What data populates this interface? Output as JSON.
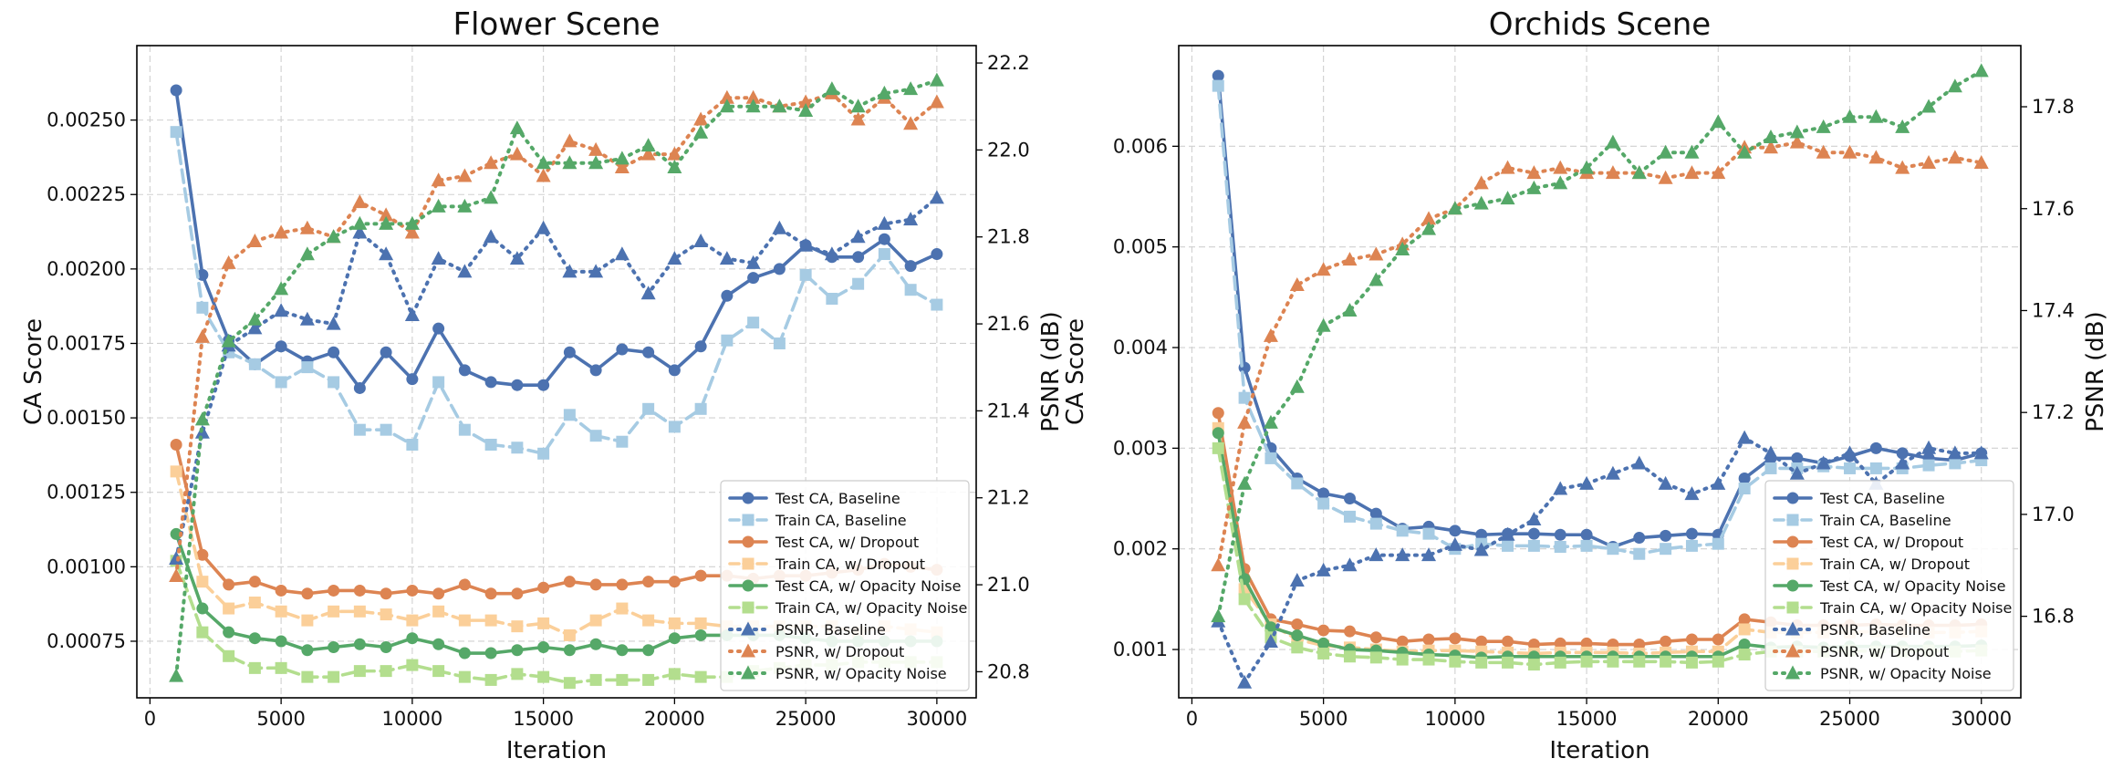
{
  "colors": {
    "baseline": "#4c72b0",
    "baseline_light": "#a6cbe3",
    "dropout": "#dd8452",
    "dropout_light": "#fbcf99",
    "noise": "#55a868",
    "noise_light": "#b3de8e"
  },
  "chart_data": [
    {
      "type": "line",
      "title": "Flower Scene",
      "xlabel": "Iteration",
      "ylabel": "CA Score",
      "y2label": "PSNR (dB)",
      "xlim": [
        -500,
        31500
      ],
      "ylim": [
        0.00056,
        0.00275
      ],
      "y2lim": [
        20.74,
        22.24
      ],
      "xticks": [
        0,
        5000,
        10000,
        15000,
        20000,
        25000,
        30000
      ],
      "yticks": [
        0.00075,
        0.001,
        0.00125,
        0.0015,
        0.00175,
        0.002,
        0.00225,
        0.0025
      ],
      "ytick_labels": [
        "0.00075",
        "0.00100",
        "0.00125",
        "0.00150",
        "0.00175",
        "0.00200",
        "0.00225",
        "0.00250"
      ],
      "y2ticks": [
        20.8,
        21.0,
        21.2,
        21.4,
        21.6,
        21.8,
        22.0,
        22.2
      ],
      "y2tick_labels": [
        "20.8",
        "21.0",
        "21.2",
        "21.4",
        "21.6",
        "21.8",
        "22.0",
        "22.2"
      ],
      "grid": true,
      "legend_position": "lower-right",
      "x": [
        1000,
        2000,
        3000,
        4000,
        5000,
        6000,
        7000,
        8000,
        9000,
        10000,
        11000,
        12000,
        13000,
        14000,
        15000,
        16000,
        17000,
        18000,
        19000,
        20000,
        21000,
        22000,
        23000,
        24000,
        25000,
        26000,
        27000,
        28000,
        29000,
        30000
      ],
      "series": [
        {
          "name": "Test CA, Baseline",
          "axis": "left",
          "values": [
            0.0026,
            0.00198,
            0.00176,
            0.00168,
            0.00174,
            0.00169,
            0.00172,
            0.0016,
            0.00172,
            0.00163,
            0.0018,
            0.00166,
            0.00162,
            0.00161,
            0.00161,
            0.00172,
            0.00166,
            0.00173,
            0.00172,
            0.00166,
            0.00174,
            0.00191,
            0.00197,
            0.002,
            0.00208,
            0.00204,
            0.00204,
            0.0021,
            0.00201,
            0.00205
          ]
        },
        {
          "name": "Train CA, Baseline",
          "axis": "left",
          "values": [
            0.00246,
            0.00187,
            0.00172,
            0.00168,
            0.00162,
            0.00167,
            0.00162,
            0.00146,
            0.00146,
            0.00141,
            0.00162,
            0.00146,
            0.00141,
            0.0014,
            0.00138,
            0.00151,
            0.00144,
            0.00142,
            0.00153,
            0.00147,
            0.00153,
            0.00176,
            0.00182,
            0.00175,
            0.00198,
            0.0019,
            0.00195,
            0.00205,
            0.00193,
            0.00188
          ]
        },
        {
          "name": "Test CA, w/ Dropout",
          "axis": "left",
          "values": [
            0.00141,
            0.00104,
            0.00094,
            0.00095,
            0.00092,
            0.00091,
            0.00092,
            0.00092,
            0.00091,
            0.00092,
            0.00091,
            0.00094,
            0.00091,
            0.00091,
            0.00093,
            0.00095,
            0.00094,
            0.00094,
            0.00095,
            0.00095,
            0.00097,
            0.00097,
            0.00096,
            0.00097,
            0.00097,
            0.00098,
            0.00099,
            0.00101,
            0.001,
            0.00099
          ]
        },
        {
          "name": "Train CA, w/ Dropout",
          "axis": "left",
          "values": [
            0.00132,
            0.00095,
            0.00086,
            0.00088,
            0.00085,
            0.00082,
            0.00085,
            0.00085,
            0.00084,
            0.00082,
            0.00085,
            0.00082,
            0.00082,
            0.0008,
            0.00081,
            0.00077,
            0.00082,
            0.00086,
            0.00082,
            0.00081,
            0.00081,
            0.0008,
            0.0008,
            0.0008,
            0.0008,
            0.0008,
            0.00078,
            0.0008,
            0.00079,
            0.00078
          ]
        },
        {
          "name": "Test CA, w/ Opacity Noise",
          "axis": "left",
          "values": [
            0.00111,
            0.00086,
            0.00078,
            0.00076,
            0.00075,
            0.00072,
            0.00073,
            0.00074,
            0.00073,
            0.00076,
            0.00074,
            0.00071,
            0.00071,
            0.00072,
            0.00073,
            0.00072,
            0.00074,
            0.00072,
            0.00072,
            0.00076,
            0.00077,
            0.00077,
            0.00077,
            0.00077,
            0.00076,
            0.00075,
            0.00075,
            0.00075,
            0.00075,
            0.00075
          ]
        },
        {
          "name": "Train CA, w/ Opacity Noise",
          "axis": "left",
          "values": [
            0.00102,
            0.00078,
            0.0007,
            0.00066,
            0.00066,
            0.00063,
            0.00063,
            0.00065,
            0.00065,
            0.00067,
            0.00065,
            0.00063,
            0.00062,
            0.00064,
            0.00063,
            0.00061,
            0.00062,
            0.00062,
            0.00062,
            0.00064,
            0.00063,
            0.00063,
            0.00065,
            0.00066,
            0.00067,
            0.00067,
            0.00068,
            0.00068,
            0.00068,
            0.00068
          ]
        },
        {
          "name": "PSNR, Baseline",
          "axis": "right",
          "values": [
            21.06,
            21.35,
            21.55,
            21.59,
            21.63,
            21.61,
            21.6,
            21.81,
            21.76,
            21.62,
            21.75,
            21.72,
            21.8,
            21.75,
            21.82,
            21.72,
            21.72,
            21.76,
            21.67,
            21.75,
            21.79,
            21.75,
            21.74,
            21.82,
            21.78,
            21.76,
            21.8,
            21.83,
            21.84,
            21.89
          ]
        },
        {
          "name": "PSNR, w/ Dropout",
          "axis": "right",
          "values": [
            21.02,
            21.57,
            21.74,
            21.79,
            21.81,
            21.82,
            21.8,
            21.88,
            21.85,
            21.81,
            21.93,
            21.94,
            21.97,
            21.99,
            21.94,
            22.02,
            22.0,
            21.96,
            21.99,
            21.99,
            22.07,
            22.12,
            22.12,
            22.1,
            22.11,
            22.13,
            22.07,
            22.12,
            22.06,
            22.11
          ]
        },
        {
          "name": "PSNR, w/ Opacity Noise",
          "axis": "right",
          "values": [
            20.79,
            21.38,
            21.56,
            21.61,
            21.68,
            21.76,
            21.8,
            21.83,
            21.83,
            21.83,
            21.87,
            21.87,
            21.89,
            22.05,
            21.97,
            21.97,
            21.97,
            21.98,
            22.01,
            21.96,
            22.04,
            22.1,
            22.1,
            22.1,
            22.09,
            22.14,
            22.1,
            22.13,
            22.14,
            22.16
          ]
        }
      ]
    },
    {
      "type": "line",
      "title": "Orchids Scene",
      "xlabel": "Iteration",
      "ylabel": "CA Score",
      "y2label": "PSNR (dB)",
      "xlim": [
        -500,
        31500
      ],
      "ylim": [
        0.00052,
        0.007
      ],
      "y2lim": [
        16.64,
        17.92
      ],
      "xticks": [
        0,
        5000,
        10000,
        15000,
        20000,
        25000,
        30000
      ],
      "yticks": [
        0.001,
        0.002,
        0.003,
        0.004,
        0.005,
        0.006
      ],
      "ytick_labels": [
        "0.001",
        "0.002",
        "0.003",
        "0.004",
        "0.005",
        "0.006"
      ],
      "y2ticks": [
        16.8,
        17.0,
        17.2,
        17.4,
        17.6,
        17.8
      ],
      "y2tick_labels": [
        "16.8",
        "17.0",
        "17.2",
        "17.4",
        "17.6",
        "17.8"
      ],
      "grid": true,
      "legend_position": "lower-right",
      "x": [
        1000,
        2000,
        3000,
        4000,
        5000,
        6000,
        7000,
        8000,
        9000,
        10000,
        11000,
        12000,
        13000,
        14000,
        15000,
        16000,
        17000,
        18000,
        19000,
        20000,
        21000,
        22000,
        23000,
        24000,
        25000,
        26000,
        27000,
        28000,
        29000,
        30000
      ],
      "series": [
        {
          "name": "Test CA, Baseline",
          "axis": "left",
          "values": [
            0.0067,
            0.0038,
            0.003,
            0.0027,
            0.00255,
            0.0025,
            0.00235,
            0.0022,
            0.00222,
            0.00218,
            0.00214,
            0.00215,
            0.00215,
            0.00214,
            0.00214,
            0.00202,
            0.00211,
            0.00213,
            0.00215,
            0.00214,
            0.0027,
            0.0029,
            0.0029,
            0.00285,
            0.00292,
            0.003,
            0.00295,
            0.0029,
            0.00288,
            0.00295
          ]
        },
        {
          "name": "Train CA, Baseline",
          "axis": "left",
          "values": [
            0.0066,
            0.0035,
            0.0029,
            0.00265,
            0.00245,
            0.00232,
            0.00225,
            0.00218,
            0.00215,
            0.002,
            0.00205,
            0.00203,
            0.00203,
            0.00202,
            0.00203,
            0.002,
            0.00195,
            0.002,
            0.00203,
            0.00205,
            0.0026,
            0.0028,
            0.0028,
            0.00282,
            0.0028,
            0.0028,
            0.0028,
            0.00283,
            0.00285,
            0.00288
          ]
        },
        {
          "name": "Test CA, w/ Dropout",
          "axis": "left",
          "values": [
            0.00335,
            0.0018,
            0.0013,
            0.00125,
            0.00119,
            0.00118,
            0.00112,
            0.00108,
            0.0011,
            0.00111,
            0.00108,
            0.00108,
            0.00105,
            0.00106,
            0.00106,
            0.00105,
            0.00105,
            0.00108,
            0.0011,
            0.0011,
            0.0013,
            0.00127,
            0.00124,
            0.00124,
            0.00124,
            0.00125,
            0.00124,
            0.00124,
            0.00124,
            0.00125
          ]
        },
        {
          "name": "Train CA, w/ Dropout",
          "axis": "left",
          "values": [
            0.0032,
            0.0016,
            0.00125,
            0.0011,
            0.00104,
            0.00102,
            0.001,
            0.00098,
            0.00099,
            0.00099,
            0.00098,
            0.00097,
            0.00096,
            0.00097,
            0.00097,
            0.00097,
            0.00096,
            0.00097,
            0.00098,
            0.00098,
            0.0012,
            0.00117,
            0.00117,
            0.00117,
            0.00117,
            0.00118,
            0.00118,
            0.00117,
            0.00117,
            0.00118
          ]
        },
        {
          "name": "Test CA, w/ Opacity Noise",
          "axis": "left",
          "values": [
            0.00315,
            0.0017,
            0.00122,
            0.00114,
            0.00106,
            0.001,
            0.00099,
            0.00097,
            0.00095,
            0.00094,
            0.00092,
            0.00093,
            0.00093,
            0.00093,
            0.00093,
            0.00093,
            0.00093,
            0.00093,
            0.00093,
            0.00093,
            0.00105,
            0.00102,
            0.00103,
            0.00102,
            0.00103,
            0.00103,
            0.00103,
            0.00103,
            0.00103,
            0.00104
          ]
        },
        {
          "name": "Train CA, w/ Opacity Noise",
          "axis": "left",
          "values": [
            0.003,
            0.0015,
            0.00112,
            0.00102,
            0.00096,
            0.00093,
            0.00092,
            0.0009,
            0.0009,
            0.00088,
            0.00087,
            0.00087,
            0.00085,
            0.00087,
            0.00088,
            0.00088,
            0.00088,
            0.00088,
            0.00087,
            0.00088,
            0.00095,
            0.00098,
            0.00098,
            0.00098,
            0.00099,
            0.00098,
            0.00098,
            0.00099,
            0.00098,
            0.00099
          ]
        },
        {
          "name": "PSNR, Baseline",
          "axis": "right",
          "values": [
            16.79,
            16.67,
            16.75,
            16.87,
            16.89,
            16.9,
            16.92,
            16.92,
            16.92,
            16.94,
            16.93,
            16.96,
            16.99,
            17.05,
            17.06,
            17.08,
            17.1,
            17.06,
            17.04,
            17.06,
            17.15,
            17.12,
            17.08,
            17.1,
            17.12,
            17.06,
            17.1,
            17.13,
            17.12,
            17.12
          ]
        },
        {
          "name": "PSNR, w/ Dropout",
          "axis": "right",
          "values": [
            16.9,
            17.18,
            17.35,
            17.45,
            17.48,
            17.5,
            17.51,
            17.53,
            17.58,
            17.6,
            17.65,
            17.68,
            17.67,
            17.68,
            17.67,
            17.67,
            17.67,
            17.66,
            17.67,
            17.67,
            17.72,
            17.72,
            17.73,
            17.71,
            17.71,
            17.7,
            17.68,
            17.69,
            17.7,
            17.69
          ]
        },
        {
          "name": "PSNR, w/ Opacity Noise",
          "axis": "right",
          "values": [
            16.8,
            17.06,
            17.18,
            17.25,
            17.37,
            17.4,
            17.46,
            17.52,
            17.56,
            17.6,
            17.61,
            17.62,
            17.64,
            17.65,
            17.68,
            17.73,
            17.67,
            17.71,
            17.71,
            17.77,
            17.71,
            17.74,
            17.75,
            17.76,
            17.78,
            17.78,
            17.76,
            17.8,
            17.84,
            17.87
          ]
        }
      ]
    }
  ]
}
